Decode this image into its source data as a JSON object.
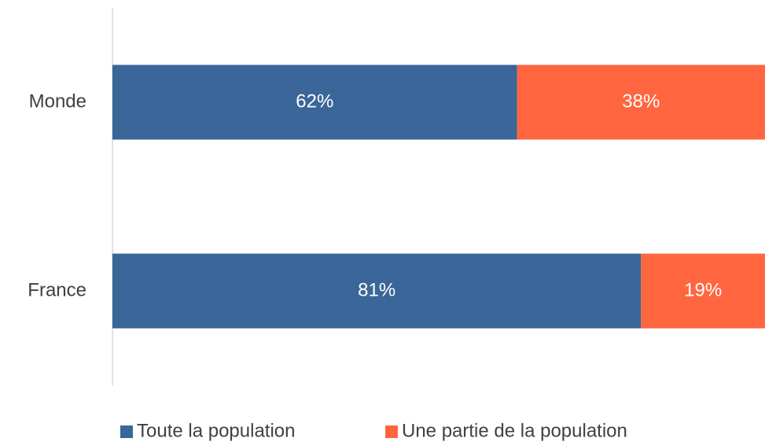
{
  "chart_data": {
    "type": "stacked_bar_horizontal",
    "categories": [
      "Monde",
      "France"
    ],
    "series": [
      {
        "name": "Toute la population",
        "color": "#3a6699",
        "values": [
          62,
          81
        ],
        "value_labels": [
          "62%",
          "81%"
        ]
      },
      {
        "name": "Une partie de la population",
        "color": "#ff6640",
        "values": [
          38,
          19
        ],
        "value_labels": [
          "38%",
          "19%"
        ]
      }
    ],
    "xlim": [
      0,
      100
    ],
    "legend": "bottom"
  }
}
